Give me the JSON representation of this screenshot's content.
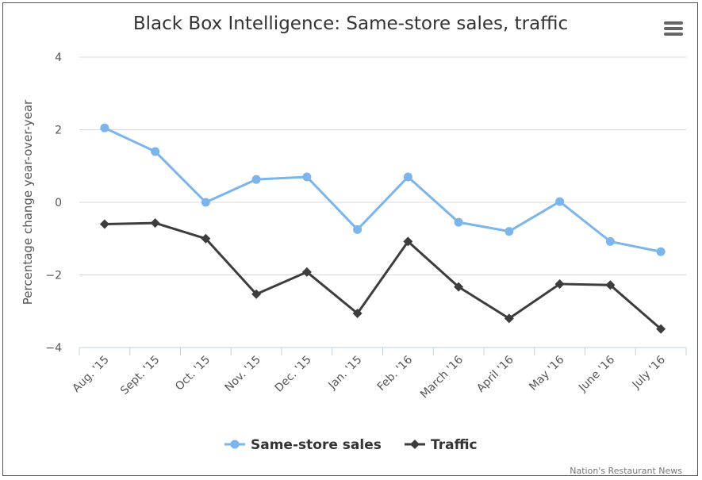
{
  "chart_data": {
    "type": "line",
    "title": "Black Box Intelligence: Same-store sales, traffic",
    "xlabel": "",
    "ylabel": "Percentage change year-over-year",
    "ylim": [
      -4,
      4
    ],
    "yticks": [
      "4",
      "2",
      "0",
      "−2",
      "−4"
    ],
    "categories": [
      "Aug. '15",
      "Sept. '15",
      "Oct. '15",
      "Nov. '15",
      "Dec. '15",
      "Jan. '15",
      "Feb. '16",
      "March '16",
      "April '16",
      "May '16",
      "June '16",
      "July '16"
    ],
    "series": [
      {
        "name": "Same-store sales",
        "color": "#7cb5ec",
        "marker": "circle",
        "values": [
          2.05,
          1.4,
          0.0,
          0.63,
          0.7,
          -0.75,
          0.7,
          -0.55,
          -0.8,
          0.02,
          -1.08,
          -1.36
        ]
      },
      {
        "name": "Traffic",
        "color": "#3d3d3d",
        "marker": "diamond",
        "values": [
          -0.6,
          -0.57,
          -1.0,
          -2.53,
          -1.92,
          -3.06,
          -1.08,
          -2.33,
          -3.2,
          -2.25,
          -2.28,
          -3.49
        ]
      }
    ],
    "grid": true,
    "legend": "bottom-center"
  },
  "credit": "Nation's Restaurant News",
  "menu_icon": "hamburger-menu-icon"
}
